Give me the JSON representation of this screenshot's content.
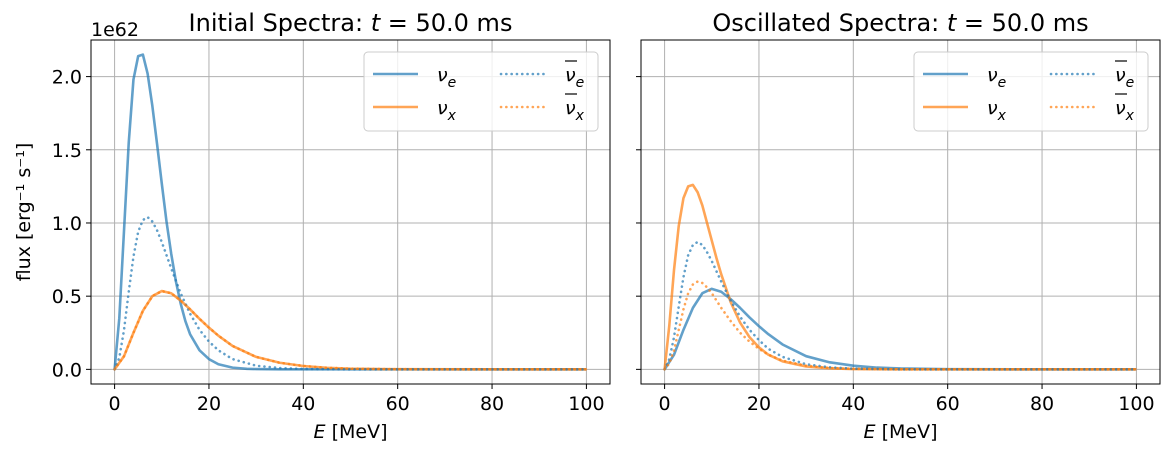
{
  "chart_data": [
    {
      "type": "line",
      "title_prefix": "Initial Spectra: ",
      "title_var": "t",
      "title_value": " = 50.0 ms",
      "xlabel_var": "E",
      "xlabel_unit": " [MeV]",
      "ylabel": "flux [erg⁻¹ s⁻¹]",
      "offset_text": "1e62",
      "xlim": [
        -5,
        105
      ],
      "ylim": [
        -0.1,
        2.25
      ],
      "x_ticks": [
        0,
        20,
        40,
        60,
        80,
        100
      ],
      "x_tick_labels": [
        "0",
        "20",
        "40",
        "60",
        "80",
        "100"
      ],
      "y_ticks": [
        0,
        0.5,
        1.0,
        1.5,
        2.0
      ],
      "y_tick_labels": [
        "0.0",
        "0.5",
        "1.0",
        "1.5",
        "2.0"
      ],
      "grid": true,
      "legend": {
        "placement": "upper-right",
        "entries": [
          {
            "label": "νe",
            "base": "ν",
            "sub": "e",
            "bar": false,
            "series": 0
          },
          {
            "label": "νx",
            "base": "ν",
            "sub": "x",
            "bar": false,
            "series": 1
          },
          {
            "label": "ν̄e",
            "base": "ν",
            "sub": "e",
            "bar": true,
            "series": 2
          },
          {
            "label": "ν̄x",
            "base": "ν",
            "sub": "x",
            "bar": true,
            "series": 3
          }
        ]
      },
      "series": [
        {
          "name": "νe",
          "color": "#1f77b4",
          "style": "solid",
          "x": [
            0,
            1,
            2,
            3,
            4,
            5,
            6,
            7,
            8,
            9,
            10,
            11,
            12,
            13,
            14,
            15,
            16,
            18,
            20,
            22,
            25,
            28,
            30,
            35,
            40,
            50,
            60,
            80,
            100
          ],
          "y": [
            0,
            0.35,
            0.95,
            1.55,
            1.98,
            2.14,
            2.15,
            2.02,
            1.8,
            1.54,
            1.27,
            1.01,
            0.79,
            0.6,
            0.45,
            0.33,
            0.24,
            0.13,
            0.07,
            0.035,
            0.012,
            0.004,
            0.002,
            0.0003,
            0,
            0,
            0,
            0,
            0
          ]
        },
        {
          "name": "νx",
          "color": "#ff7f0e",
          "style": "solid",
          "x": [
            0,
            2,
            4,
            6,
            8,
            10,
            12,
            14,
            16,
            18,
            20,
            22,
            25,
            30,
            35,
            40,
            45,
            50,
            60,
            80,
            100
          ],
          "y": [
            0,
            0.09,
            0.25,
            0.4,
            0.5,
            0.535,
            0.52,
            0.47,
            0.41,
            0.345,
            0.285,
            0.23,
            0.16,
            0.085,
            0.045,
            0.023,
            0.011,
            0.005,
            0.001,
            0,
            0
          ]
        },
        {
          "name": "ν̄e",
          "color": "#1f77b4",
          "style": "dotted",
          "x": [
            0,
            1,
            2,
            3,
            4,
            5,
            6,
            7,
            8,
            9,
            10,
            11,
            12,
            14,
            16,
            18,
            20,
            22,
            25,
            30,
            35,
            40,
            50,
            60,
            80,
            100
          ],
          "y": [
            0,
            0.08,
            0.27,
            0.53,
            0.77,
            0.94,
            1.02,
            1.04,
            1.01,
            0.95,
            0.87,
            0.78,
            0.69,
            0.52,
            0.38,
            0.27,
            0.19,
            0.13,
            0.07,
            0.025,
            0.009,
            0.003,
            0,
            0,
            0,
            0
          ]
        },
        {
          "name": "ν̄x",
          "color": "#ff7f0e",
          "style": "dotted",
          "x": [
            0,
            2,
            4,
            6,
            8,
            10,
            12,
            14,
            16,
            18,
            20,
            22,
            25,
            30,
            35,
            40,
            45,
            50,
            60,
            80,
            100
          ],
          "y": [
            0,
            0.09,
            0.25,
            0.4,
            0.5,
            0.535,
            0.52,
            0.47,
            0.41,
            0.345,
            0.285,
            0.23,
            0.16,
            0.085,
            0.045,
            0.023,
            0.011,
            0.005,
            0.001,
            0,
            0
          ]
        }
      ]
    },
    {
      "type": "line",
      "title_prefix": "Oscillated Spectra: ",
      "title_var": "t",
      "title_value": " = 50.0 ms",
      "xlabel_var": "E",
      "xlabel_unit": " [MeV]",
      "xlim": [
        -5,
        105
      ],
      "ylim": [
        -0.1,
        2.25
      ],
      "x_ticks": [
        0,
        20,
        40,
        60,
        80,
        100
      ],
      "x_tick_labels": [
        "0",
        "20",
        "40",
        "60",
        "80",
        "100"
      ],
      "y_ticks": [
        0,
        0.5,
        1.0,
        1.5,
        2.0
      ],
      "grid": true,
      "legend": {
        "placement": "upper-right",
        "entries": [
          {
            "label": "νe",
            "base": "ν",
            "sub": "e",
            "bar": false,
            "series": 0
          },
          {
            "label": "νx",
            "base": "ν",
            "sub": "x",
            "bar": false,
            "series": 1
          },
          {
            "label": "ν̄e",
            "base": "ν",
            "sub": "e",
            "bar": true,
            "series": 2
          },
          {
            "label": "ν̄x",
            "base": "ν",
            "sub": "x",
            "bar": true,
            "series": 3
          }
        ]
      },
      "series": [
        {
          "name": "νe",
          "color": "#1f77b4",
          "style": "solid",
          "x": [
            0,
            2,
            4,
            6,
            8,
            10,
            12,
            14,
            16,
            18,
            20,
            22,
            25,
            30,
            35,
            40,
            45,
            50,
            60,
            80,
            100
          ],
          "y": [
            0,
            0.1,
            0.27,
            0.42,
            0.52,
            0.55,
            0.53,
            0.48,
            0.42,
            0.355,
            0.295,
            0.24,
            0.17,
            0.09,
            0.048,
            0.025,
            0.012,
            0.006,
            0.0015,
            0,
            0
          ]
        },
        {
          "name": "νx",
          "color": "#ff7f0e",
          "style": "solid",
          "x": [
            0,
            1,
            2,
            3,
            4,
            5,
            6,
            7,
            8,
            9,
            10,
            11,
            12,
            14,
            16,
            18,
            20,
            22,
            25,
            30,
            35,
            40,
            50,
            60,
            80,
            100
          ],
          "y": [
            0,
            0.3,
            0.68,
            0.98,
            1.17,
            1.25,
            1.26,
            1.21,
            1.12,
            1.0,
            0.88,
            0.76,
            0.65,
            0.46,
            0.32,
            0.22,
            0.15,
            0.1,
            0.055,
            0.02,
            0.007,
            0.002,
            0,
            0,
            0,
            0
          ]
        },
        {
          "name": "ν̄e",
          "color": "#1f77b4",
          "style": "dotted",
          "x": [
            0,
            1,
            2,
            3,
            4,
            5,
            6,
            7,
            8,
            9,
            10,
            11,
            12,
            14,
            16,
            18,
            20,
            22,
            25,
            30,
            35,
            40,
            50,
            60,
            80,
            100
          ],
          "y": [
            0,
            0.07,
            0.22,
            0.43,
            0.63,
            0.78,
            0.85,
            0.87,
            0.85,
            0.8,
            0.74,
            0.67,
            0.6,
            0.47,
            0.36,
            0.27,
            0.2,
            0.14,
            0.085,
            0.035,
            0.014,
            0.005,
            0,
            0,
            0,
            0
          ]
        },
        {
          "name": "ν̄x",
          "color": "#ff7f0e",
          "style": "dotted",
          "x": [
            0,
            1,
            2,
            3,
            4,
            5,
            6,
            7,
            8,
            9,
            10,
            11,
            12,
            14,
            16,
            18,
            20,
            22,
            25,
            30,
            35,
            40,
            50,
            60,
            80,
            100
          ],
          "y": [
            0,
            0.04,
            0.13,
            0.27,
            0.41,
            0.52,
            0.58,
            0.6,
            0.59,
            0.56,
            0.52,
            0.47,
            0.42,
            0.33,
            0.25,
            0.19,
            0.14,
            0.1,
            0.06,
            0.025,
            0.01,
            0.004,
            0,
            0,
            0,
            0
          ]
        }
      ]
    }
  ]
}
